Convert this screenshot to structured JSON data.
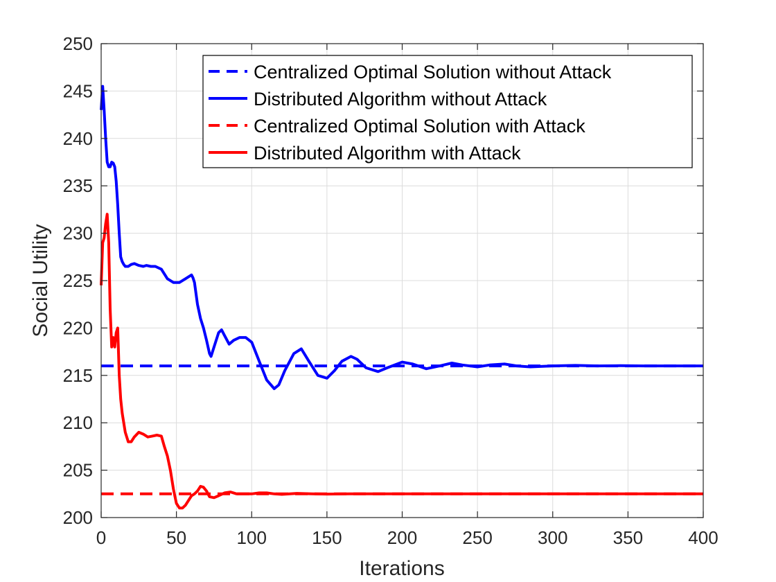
{
  "chart_data": {
    "type": "line",
    "title": "",
    "xlabel": "Iterations",
    "ylabel": "Social Utility",
    "xlim": [
      0,
      400
    ],
    "ylim": [
      200,
      250
    ],
    "xticks": [
      0,
      50,
      100,
      150,
      200,
      250,
      300,
      350,
      400
    ],
    "yticks": [
      200,
      205,
      210,
      215,
      220,
      225,
      230,
      235,
      240,
      245,
      250
    ],
    "grid": true,
    "legend_position": "top-right",
    "series": [
      {
        "name": "Centralized Optimal Solution without Attack",
        "color": "#0000ff",
        "style": "dashed",
        "x": [
          0,
          400
        ],
        "y": [
          216,
          216
        ]
      },
      {
        "name": "Distributed Algorithm without Attack",
        "color": "#0000ff",
        "style": "solid",
        "x": [
          0,
          1,
          2,
          3,
          4,
          5,
          6,
          7,
          8,
          9,
          10,
          11,
          12,
          13,
          14,
          15,
          16,
          18,
          20,
          22,
          25,
          28,
          30,
          33,
          36,
          40,
          44,
          48,
          52,
          56,
          60,
          61,
          62,
          64,
          66,
          68,
          70,
          72,
          73,
          75,
          78,
          80,
          82,
          85,
          88,
          92,
          96,
          100,
          105,
          110,
          115,
          118,
          122,
          128,
          133,
          138,
          144,
          150,
          155,
          160,
          166,
          170,
          176,
          184,
          190,
          200,
          207,
          216,
          225,
          233,
          240,
          250,
          258,
          268,
          276,
          285,
          300,
          315,
          330,
          345,
          360,
          380,
          400
        ],
        "y": [
          243,
          245.5,
          243,
          240,
          237.5,
          237,
          237,
          237.5,
          237.4,
          237,
          235.5,
          233,
          230,
          227.5,
          227,
          226.7,
          226.5,
          226.5,
          226.7,
          226.8,
          226.6,
          226.5,
          226.6,
          226.5,
          226.5,
          226.2,
          225.2,
          224.8,
          224.8,
          225.2,
          225.6,
          225.3,
          224.8,
          222.5,
          221,
          220,
          218.7,
          217.3,
          217,
          218,
          219.5,
          219.8,
          219.2,
          218.3,
          218.7,
          219,
          219,
          218.5,
          216.5,
          214.5,
          213.6,
          214,
          215.5,
          217.3,
          217.8,
          216.5,
          215,
          214.7,
          215.5,
          216.5,
          217,
          216.7,
          215.8,
          215.4,
          215.8,
          216.4,
          216.2,
          215.7,
          216,
          216.3,
          216.1,
          215.9,
          216.1,
          216.2,
          216,
          215.9,
          216,
          216.05,
          216,
          216.02,
          216,
          216,
          216
        ]
      },
      {
        "name": "Centralized Optimal Solution with Attack",
        "color": "#ff0000",
        "style": "dashed",
        "x": [
          0,
          400
        ],
        "y": [
          202.5,
          202.5
        ]
      },
      {
        "name": "Distributed Algorithm with Attack",
        "color": "#ff0000",
        "style": "solid",
        "x": [
          0,
          1,
          2,
          3,
          4,
          5,
          6,
          7,
          8,
          9,
          10,
          11,
          12,
          13,
          14,
          16,
          18,
          20,
          22,
          25,
          28,
          31,
          34,
          37,
          40,
          42,
          44,
          46,
          48,
          50,
          52,
          54,
          56,
          58,
          60,
          62,
          64,
          66,
          68,
          70,
          72,
          75,
          78,
          82,
          86,
          90,
          95,
          100,
          105,
          110,
          115,
          120,
          130,
          140,
          150,
          165,
          180,
          200,
          250,
          300,
          400
        ],
        "y": [
          224.5,
          229,
          229.5,
          231,
          232,
          229,
          222,
          218,
          219,
          218,
          219.5,
          220,
          215,
          212.5,
          211,
          209,
          208,
          208,
          208.5,
          209,
          208.8,
          208.5,
          208.6,
          208.7,
          208.6,
          207.5,
          206.5,
          205,
          203,
          201.5,
          201,
          201,
          201.3,
          201.8,
          202.3,
          202.5,
          202.8,
          203.3,
          203.2,
          202.8,
          202.2,
          202.1,
          202.3,
          202.6,
          202.7,
          202.5,
          202.5,
          202.5,
          202.6,
          202.6,
          202.5,
          202.45,
          202.55,
          202.5,
          202.48,
          202.5,
          202.5,
          202.5,
          202.5,
          202.5,
          202.5
        ]
      }
    ]
  }
}
